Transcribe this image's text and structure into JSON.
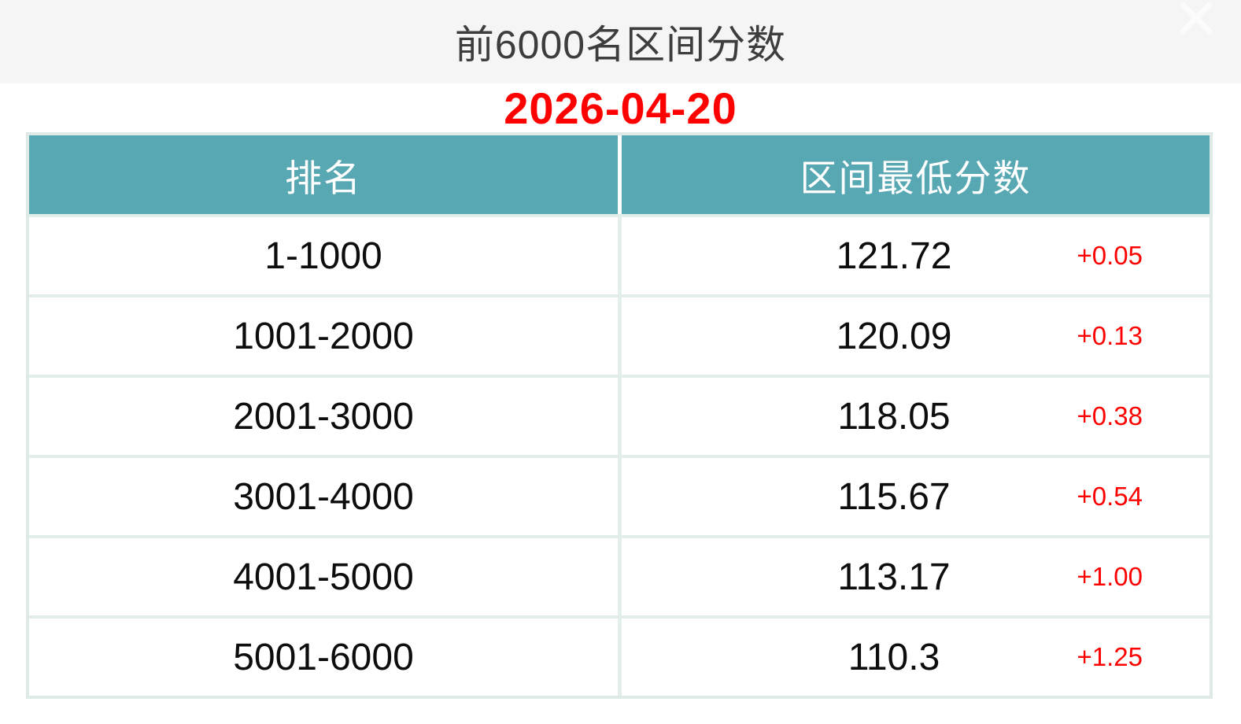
{
  "page": {
    "title": "前6000名区间分数",
    "date": "2026-04-20"
  },
  "icons": {
    "close_glyph": "✕"
  },
  "colors": {
    "band_bg": "#f5f5f6",
    "header_bg": "#58a8b3",
    "border": "#dfeae7",
    "title_text": "#3d3d3d",
    "body_text": "#0d0d0d",
    "accent_red": "#ff0000"
  },
  "chart_data": {
    "type": "table",
    "title": "前6000名区间分数",
    "date": "2026-04-20",
    "columns": [
      "排名",
      "区间最低分数"
    ],
    "rows": [
      {
        "rank": "1-1000",
        "min_score": "121.72",
        "change": "+0.05"
      },
      {
        "rank": "1001-2000",
        "min_score": "120.09",
        "change": "+0.13"
      },
      {
        "rank": "2001-3000",
        "min_score": "118.05",
        "change": "+0.38"
      },
      {
        "rank": "3001-4000",
        "min_score": "115.67",
        "change": "+0.54"
      },
      {
        "rank": "4001-5000",
        "min_score": "113.17",
        "change": "+1.00"
      },
      {
        "rank": "5001-6000",
        "min_score": "110.3",
        "change": "+1.25"
      }
    ]
  }
}
